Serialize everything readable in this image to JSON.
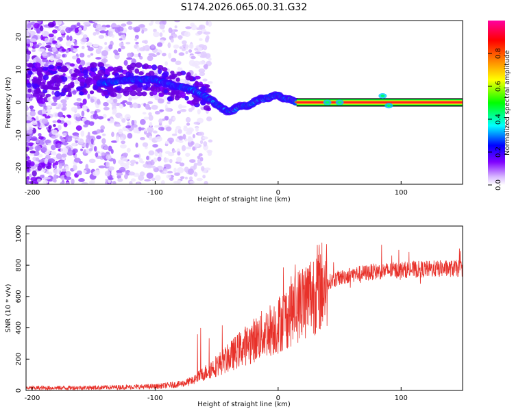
{
  "chart_data": [
    {
      "type": "heatmap",
      "title": "S174.2026.065.00.31.G32",
      "xlabel": "Height of straight line (km)",
      "ylabel": "Frequency (Hz)",
      "xlim": [
        -205,
        150
      ],
      "ylim": [
        -25,
        25
      ],
      "x_ticks": [
        -200,
        -100,
        0,
        100
      ],
      "y_ticks": [
        -20,
        -10,
        0,
        10,
        20
      ],
      "colorbar": {
        "label": "Normalized spectral amplitude",
        "range": [
          0.0,
          1.0
        ],
        "ticks": [
          0.0,
          0.2,
          0.4,
          0.6,
          0.8
        ],
        "colormap": [
          "#ffffff",
          "#8000ff",
          "#0000ff",
          "#00ffff",
          "#00ff00",
          "#ffff00",
          "#ff8000",
          "#ff0000",
          "#ff00a0"
        ]
      },
      "ridge": {
        "x": [
          -140,
          -120,
          -100,
          -85,
          -70,
          -60,
          -52,
          -45,
          -40,
          -35,
          -30,
          -25,
          -20,
          -15,
          -10,
          -5,
          0,
          5,
          10,
          15,
          40,
          60,
          80,
          85,
          90,
          95,
          100,
          150
        ],
        "y": [
          6,
          7,
          7,
          5,
          4,
          2,
          0,
          -2,
          -3,
          -2,
          -1,
          -1,
          0,
          1,
          1,
          2,
          2,
          1,
          1,
          0,
          0,
          0,
          0,
          2,
          -1,
          0,
          0,
          0
        ]
      }
    },
    {
      "type": "line",
      "xlabel": "Height of straight line (km)",
      "ylabel": "SNR (10 * v/v)",
      "xlim": [
        -205,
        150
      ],
      "ylim": [
        0,
        1050
      ],
      "x_ticks": [
        -200,
        -100,
        0,
        100
      ],
      "y_ticks": [
        0,
        200,
        400,
        600,
        800,
        1000
      ],
      "series": [
        {
          "name": "SNR",
          "color": "#e8312a",
          "trend": {
            "x": [
              -205,
              -150,
              -100,
              -80,
              -70,
              -60,
              -50,
              -40,
              -30,
              -20,
              -10,
              0,
              10,
              20,
              30,
              40,
              50,
              60,
              80,
              100,
              120,
              150
            ],
            "y": [
              15,
              18,
              25,
              40,
              60,
              110,
              160,
              210,
              270,
              320,
              370,
              420,
              500,
              570,
              640,
              690,
              720,
              740,
              760,
              770,
              775,
              780
            ]
          }
        }
      ]
    }
  ]
}
